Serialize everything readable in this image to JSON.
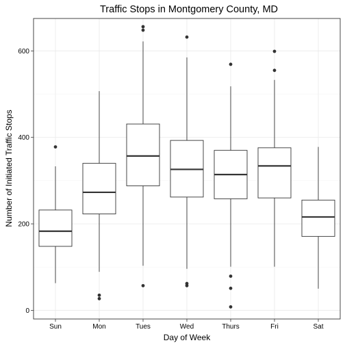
{
  "chart_data": {
    "type": "boxplot",
    "title": "Traffic Stops in Montgomery County, MD",
    "xlabel": "Day of Week",
    "ylabel": "Number of Initiated Traffic Stops",
    "ylim": [
      -20,
      675
    ],
    "yticks": [
      0,
      200,
      400,
      600
    ],
    "grid": true,
    "categories": [
      "Sun",
      "Mon",
      "Tues",
      "Wed",
      "Thurs",
      "Fri",
      "Sat"
    ],
    "boxes": [
      {
        "category": "Sun",
        "whisker_low": 63,
        "q1": 148,
        "median": 183,
        "q3": 232,
        "whisker_high": 333,
        "outliers": [
          378
        ]
      },
      {
        "category": "Mon",
        "whisker_low": 89,
        "q1": 223,
        "median": 273,
        "q3": 340,
        "whisker_high": 507,
        "outliers": [
          35,
          27
        ]
      },
      {
        "category": "Tues",
        "whisker_low": 103,
        "q1": 288,
        "median": 357,
        "q3": 431,
        "whisker_high": 622,
        "outliers": [
          656,
          648,
          57
        ]
      },
      {
        "category": "Wed",
        "whisker_low": 96,
        "q1": 262,
        "median": 326,
        "q3": 393,
        "whisker_high": 585,
        "outliers": [
          632,
          62,
          57
        ]
      },
      {
        "category": "Thurs",
        "whisker_low": 101,
        "q1": 258,
        "median": 314,
        "q3": 370,
        "whisker_high": 518,
        "outliers": [
          569,
          79,
          51,
          8
        ]
      },
      {
        "category": "Fri",
        "whisker_low": 101,
        "q1": 260,
        "median": 334,
        "q3": 376,
        "whisker_high": 533,
        "outliers": [
          599,
          555
        ]
      },
      {
        "category": "Sat",
        "whisker_low": 50,
        "q1": 171,
        "median": 216,
        "q3": 255,
        "whisker_high": 378,
        "outliers": []
      }
    ],
    "colors": {
      "box_fill": "#ffffff",
      "box_stroke": "#333333",
      "outlier": "#333333",
      "grid": "#ebebeb",
      "panel_border": "#333333",
      "background": "#ffffff"
    }
  }
}
